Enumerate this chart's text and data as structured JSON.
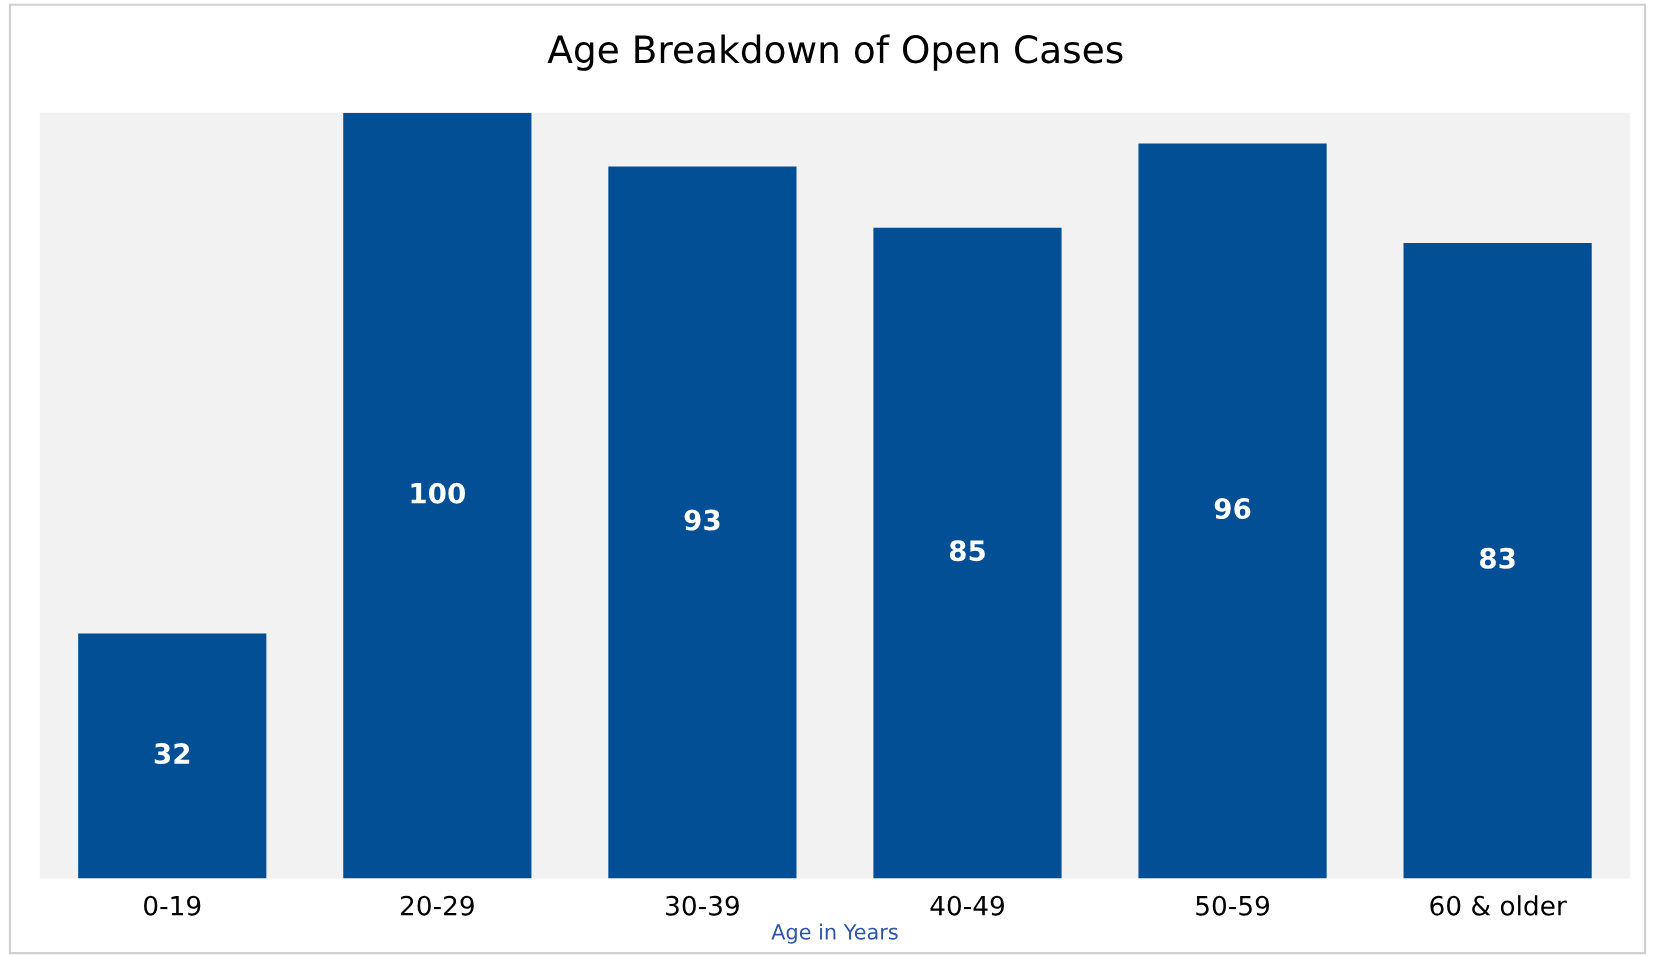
{
  "chart_data": {
    "type": "bar",
    "title": "Age Breakdown of Open Cases",
    "xlabel": "Age in Years",
    "categories": [
      "0-19",
      "20-29",
      "30-39",
      "40-49",
      "50-59",
      "60 & older"
    ],
    "values": [
      32,
      100,
      93,
      85,
      96,
      83
    ],
    "color": "#024f96",
    "ylim": [
      0,
      100
    ],
    "data_labels": true,
    "tick_labels": "x",
    "grid": false,
    "legend": false
  }
}
